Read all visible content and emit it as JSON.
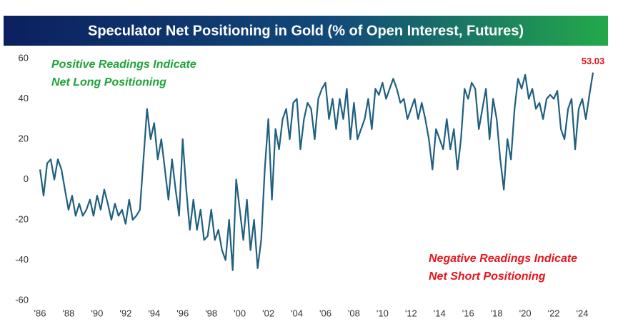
{
  "chart_data": {
    "type": "line",
    "title": "Speculator Net Positioning in Gold (% of Open Interest, Futures)",
    "annotations": [
      {
        "text": [
          "Positive Readings Indicate",
          "Net Long Positioning"
        ],
        "color": "#1fa33a"
      },
      {
        "text": [
          "Negative Readings Indicate",
          "Net Short Positioning"
        ],
        "color": "#e8141b"
      }
    ],
    "x": [
      1986,
      1986.25,
      1986.5,
      1986.75,
      1987,
      1987.25,
      1987.5,
      1987.75,
      1988,
      1988.25,
      1988.5,
      1988.75,
      1989,
      1989.25,
      1989.5,
      1989.75,
      1990,
      1990.25,
      1990.5,
      1990.75,
      1991,
      1991.25,
      1991.5,
      1991.75,
      1992,
      1992.25,
      1992.5,
      1992.75,
      1993,
      1993.25,
      1993.5,
      1993.75,
      1994,
      1994.25,
      1994.5,
      1994.75,
      1995,
      1995.25,
      1995.5,
      1995.75,
      1996,
      1996.25,
      1996.5,
      1996.75,
      1997,
      1997.25,
      1997.5,
      1997.75,
      1998,
      1998.25,
      1998.5,
      1998.75,
      1999,
      1999.25,
      1999.5,
      1999.75,
      2000,
      2000.25,
      2000.5,
      2000.75,
      2001,
      2001.25,
      2001.5,
      2001.75,
      2002,
      2002.25,
      2002.5,
      2002.75,
      2003,
      2003.25,
      2003.5,
      2003.75,
      2004,
      2004.25,
      2004.5,
      2004.75,
      2005,
      2005.25,
      2005.5,
      2005.75,
      2006,
      2006.25,
      2006.5,
      2006.75,
      2007,
      2007.25,
      2007.5,
      2007.75,
      2008,
      2008.25,
      2008.5,
      2008.75,
      2009,
      2009.25,
      2009.5,
      2009.75,
      2010,
      2010.25,
      2010.5,
      2010.75,
      2011,
      2011.25,
      2011.5,
      2011.75,
      2012,
      2012.25,
      2012.5,
      2012.75,
      2013,
      2013.25,
      2013.5,
      2013.75,
      2014,
      2014.25,
      2014.5,
      2014.75,
      2015,
      2015.25,
      2015.5,
      2015.75,
      2016,
      2016.25,
      2016.5,
      2016.75,
      2017,
      2017.25,
      2017.5,
      2017.75,
      2018,
      2018.25,
      2018.5,
      2018.75,
      2019,
      2019.25,
      2019.5,
      2019.75,
      2020,
      2020.25,
      2020.5,
      2020.75,
      2021,
      2021.25,
      2021.5,
      2021.75,
      2022,
      2022.25,
      2022.5,
      2022.75,
      2023,
      2023.25,
      2023.5,
      2023.75,
      2024,
      2024.25,
      2024.5,
      2024.75
    ],
    "series": [
      {
        "color": "#1f5f7f",
        "values": [
          5,
          -8,
          8,
          10,
          0,
          10,
          5,
          -5,
          -15,
          -8,
          -18,
          -12,
          -18,
          -15,
          -10,
          -18,
          -8,
          -15,
          -5,
          -12,
          -20,
          -12,
          -18,
          -15,
          -22,
          -10,
          -20,
          -18,
          -15,
          10,
          35,
          20,
          28,
          10,
          20,
          5,
          -10,
          10,
          -5,
          -18,
          20,
          -5,
          -25,
          -10,
          -25,
          -15,
          -30,
          -28,
          -15,
          -30,
          -25,
          -35,
          -40,
          -20,
          -45,
          0,
          -15,
          -30,
          -10,
          -35,
          -20,
          -44,
          -30,
          5,
          30,
          -10,
          25,
          15,
          30,
          35,
          20,
          38,
          40,
          15,
          30,
          38,
          35,
          20,
          40,
          45,
          48,
          30,
          40,
          25,
          40,
          30,
          45,
          20,
          38,
          20,
          25,
          30,
          40,
          25,
          45,
          42,
          48,
          40,
          45,
          50,
          45,
          38,
          40,
          30,
          35,
          40,
          30,
          38,
          30,
          20,
          5,
          25,
          20,
          15,
          30,
          15,
          25,
          5,
          20,
          45,
          40,
          48,
          45,
          25,
          35,
          45,
          20,
          40,
          30,
          10,
          -5,
          20,
          10,
          35,
          50,
          45,
          52,
          40,
          45,
          35,
          38,
          30,
          40,
          42,
          40,
          44,
          25,
          20,
          35,
          40,
          15,
          35,
          40,
          30,
          42,
          53.03
        ]
      }
    ],
    "ylim": [
      -60,
      60
    ],
    "yticks": [
      -60,
      -40,
      -20,
      0,
      20,
      40,
      60
    ],
    "xlim": [
      1985.7,
      2025.2
    ],
    "xticks": [
      {
        "value": 1986,
        "label": "'86"
      },
      {
        "value": 1988,
        "label": "'88"
      },
      {
        "value": 1990,
        "label": "'90"
      },
      {
        "value": 1992,
        "label": "'92"
      },
      {
        "value": 1994,
        "label": "'94"
      },
      {
        "value": 1996,
        "label": "'96"
      },
      {
        "value": 1998,
        "label": "'98"
      },
      {
        "value": 2000,
        "label": "'00"
      },
      {
        "value": 2002,
        "label": "'02"
      },
      {
        "value": 2004,
        "label": "'04"
      },
      {
        "value": 2006,
        "label": "'06"
      },
      {
        "value": 2008,
        "label": "'08"
      },
      {
        "value": 2010,
        "label": "'10"
      },
      {
        "value": 2012,
        "label": "'12"
      },
      {
        "value": 2014,
        "label": "'14"
      },
      {
        "value": 2016,
        "label": "'16"
      },
      {
        "value": 2018,
        "label": "'18"
      },
      {
        "value": 2020,
        "label": "'20"
      },
      {
        "value": 2022,
        "label": "'22"
      },
      {
        "value": 2024,
        "label": "'24"
      }
    ],
    "last_value_color": "#e8141b"
  }
}
